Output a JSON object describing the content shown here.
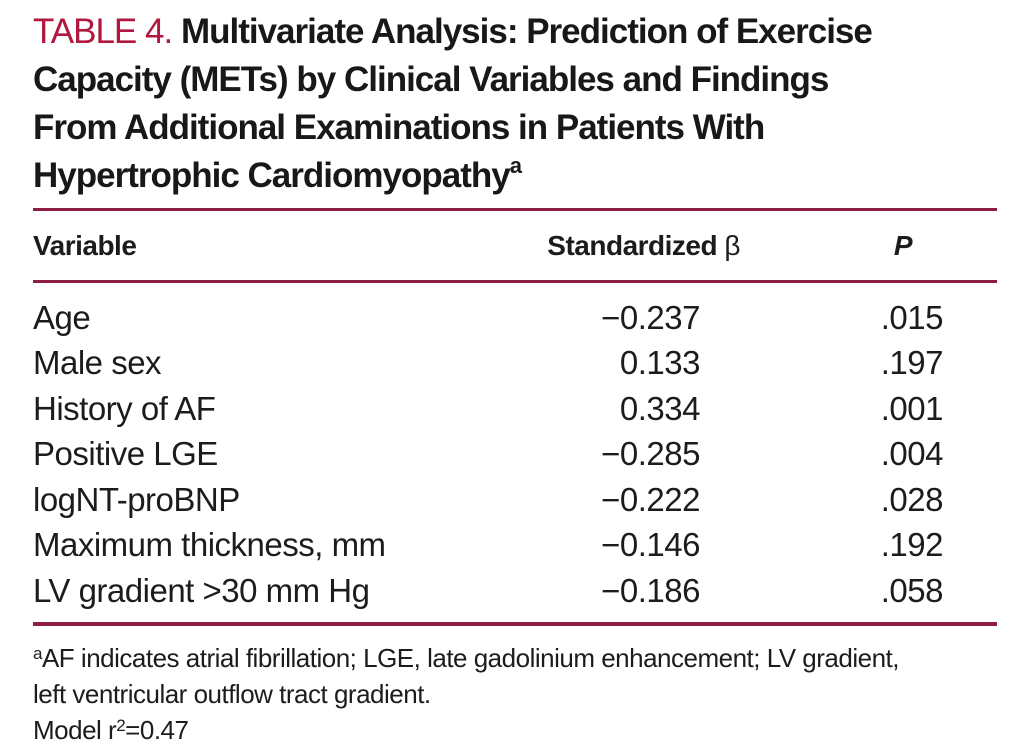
{
  "colors": {
    "accent_label": "#B0183F",
    "rule": "#8E1F42",
    "text": "#1c1c1c",
    "background": "#ffffff"
  },
  "title": {
    "label": "TABLE 4.",
    "line1": "Multivariate Analysis: Prediction of Exercise",
    "line2": "Capacity (METs) by Clinical Variables and Findings",
    "line3": "From Additional Examinations in Patients With",
    "line4": "Hypertrophic Cardiomyopathy",
    "superscript": "a"
  },
  "table": {
    "headers": {
      "variable": "Variable",
      "beta_prefix": "Standardized ",
      "beta_symbol": "β",
      "p": "P"
    },
    "rows": [
      {
        "variable": "Age",
        "beta": "−0.237",
        "p": ".015"
      },
      {
        "variable": "Male sex",
        "beta": "0.133",
        "p": ".197"
      },
      {
        "variable": "History of AF",
        "beta": "0.334",
        "p": ".001"
      },
      {
        "variable": "Positive LGE",
        "beta": "−0.285",
        "p": ".004"
      },
      {
        "variable": "logNT-proBNP",
        "beta": "−0.222",
        "p": ".028"
      },
      {
        "variable": "Maximum thickness, mm",
        "beta": "−0.146",
        "p": ".192"
      },
      {
        "variable": "LV gradient >30 mm Hg",
        "beta": "−0.186",
        "p": ".058"
      }
    ]
  },
  "footnote": {
    "marker": "a",
    "line1": "AF indicates atrial fibrillation; LGE, late gadolinium enhancement; LV gradient,",
    "line2": "left ventricular outflow tract gradient.",
    "model_prefix": "Model r",
    "model_sup": "2",
    "model_suffix": "=0.47"
  }
}
